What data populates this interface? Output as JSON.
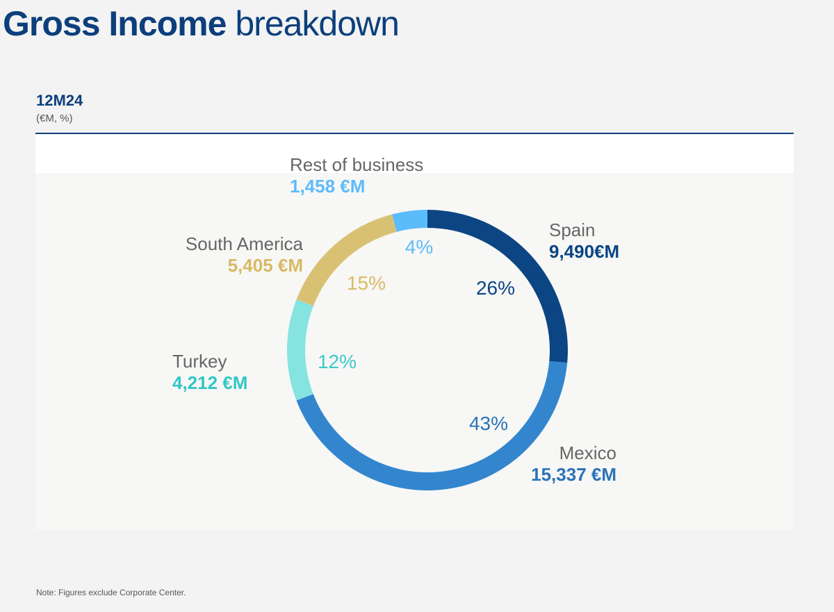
{
  "header": {
    "title_bold": "Gross Income",
    "title_rest": "breakdown"
  },
  "subheader": {
    "period": "12M24",
    "units": "(€M, %)"
  },
  "note": "Note: Figures exclude Corporate Center.",
  "chart_data": {
    "type": "pie",
    "donut": true,
    "start_angle_deg": 0,
    "direction": "clockwise",
    "slices": [
      {
        "name": "Spain",
        "value": 9490,
        "value_label": "9,490€M",
        "percent_label": "26%",
        "color": "#0b4584"
      },
      {
        "name": "Mexico",
        "value": 15337,
        "value_label": "15,337 €M",
        "percent_label": "43%",
        "color": "#3386cd",
        "value_color": "#2a73b8"
      },
      {
        "name": "Turkey",
        "value": 4212,
        "value_label": "4,212 €M",
        "percent_label": "12%",
        "color": "#85e3e0",
        "value_color": "#31c6c6",
        "percent_color": "#3cc9c9"
      },
      {
        "name": "South America",
        "value": 5405,
        "value_label": "5,405 €M",
        "percent_label": "15%",
        "color": "#d9c173",
        "value_color": "#d8b964"
      },
      {
        "name": "Rest of business",
        "value": 1458,
        "value_label": "1,458 €M",
        "percent_label": "4%",
        "color": "#5bbcfc"
      }
    ]
  }
}
